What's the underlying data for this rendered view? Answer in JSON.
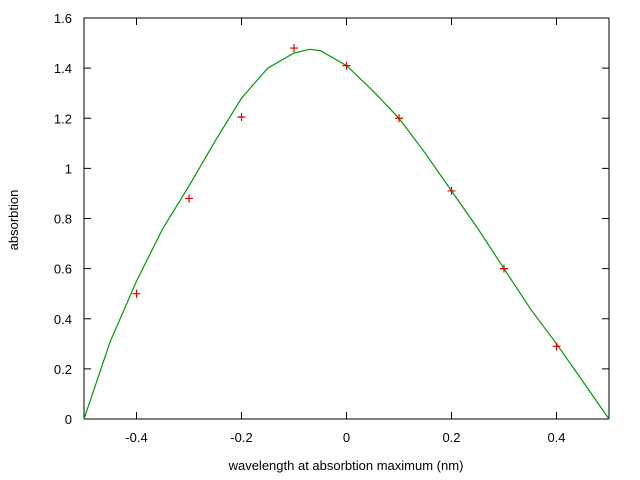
{
  "chart_data": {
    "type": "scatter",
    "title": "",
    "xlabel": "wavelength at absorbtion maximum (nm)",
    "ylabel": "absorbtion",
    "xlim": [
      -0.5,
      0.5
    ],
    "ylim": [
      0,
      1.6
    ],
    "xticks": [
      -0.4,
      -0.2,
      0,
      0.2,
      0.4
    ],
    "xtick_labels": [
      "-0.4",
      "-0.2",
      "0",
      "0.2",
      "0.4"
    ],
    "yticks": [
      0,
      0.2,
      0.4,
      0.6,
      0.8,
      1,
      1.2,
      1.4,
      1.6
    ],
    "ytick_labels": [
      "0",
      "0.2",
      "0.4",
      "0.6",
      "0.8",
      "1",
      "1.2",
      "1.4",
      "1.6"
    ],
    "grid": false,
    "series": [
      {
        "kind": "points",
        "marker": "plus",
        "color": "#dd0000",
        "x": [
          -0.4,
          -0.3,
          -0.2,
          -0.1,
          0.0,
          0.1,
          0.2,
          0.3,
          0.4
        ],
        "y": [
          0.5,
          0.88,
          1.205,
          1.48,
          1.41,
          1.2,
          0.91,
          0.6,
          0.29
        ]
      },
      {
        "kind": "line",
        "color": "#009900",
        "x": [
          -0.5,
          -0.45,
          -0.4,
          -0.35,
          -0.3,
          -0.25,
          -0.2,
          -0.15,
          -0.1,
          -0.07,
          -0.05,
          0.0,
          0.05,
          0.1,
          0.15,
          0.2,
          0.25,
          0.3,
          0.35,
          0.4,
          0.45,
          0.5
        ],
        "y": [
          0.0,
          0.31,
          0.55,
          0.76,
          0.93,
          1.11,
          1.28,
          1.4,
          1.46,
          1.475,
          1.47,
          1.41,
          1.31,
          1.2,
          1.06,
          0.91,
          0.76,
          0.6,
          0.44,
          0.3,
          0.15,
          0.0
        ]
      }
    ]
  }
}
